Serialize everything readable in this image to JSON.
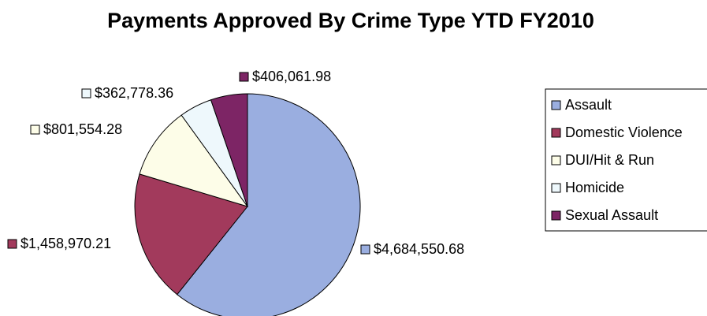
{
  "chart_data": {
    "type": "pie",
    "title": "Payments Approved By Crime Type YTD FY2010",
    "legend_position": "right",
    "slices": [
      {
        "category": "Assault",
        "value": 4684550.68,
        "label": "$4,684,550.68",
        "color": "#9aaee0"
      },
      {
        "category": "Domestic Violence",
        "value": 1458970.21,
        "label": "$1,458,970.21",
        "color": "#a23a5c"
      },
      {
        "category": "DUI/Hit & Run",
        "value": 801554.28,
        "label": "$801,554.28",
        "color": "#fdfde8"
      },
      {
        "category": "Homicide",
        "value": 362778.36,
        "label": "$362,778.36",
        "color": "#eef8fc"
      },
      {
        "category": "Sexual Assault",
        "value": 406061.98,
        "label": "$406,061.98",
        "color": "#7d2565"
      }
    ],
    "slice_order_clockwise_from_top": [
      "Assault",
      "Domestic Violence",
      "DUI/Hit & Run",
      "Homicide",
      "Sexual Assault"
    ]
  }
}
